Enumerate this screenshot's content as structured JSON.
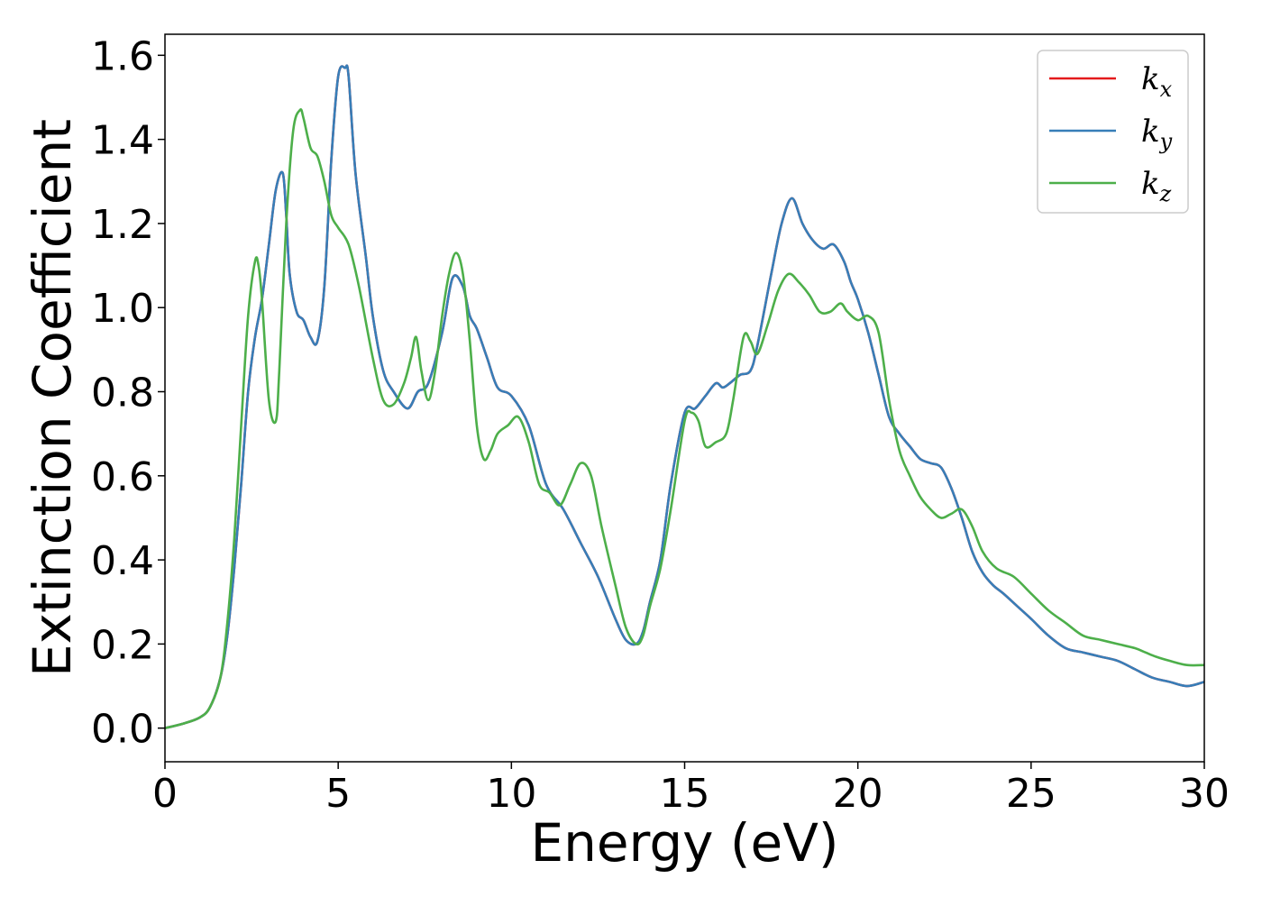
{
  "chart_data": {
    "type": "line",
    "xlabel": "Energy (eV)",
    "ylabel": "Extinction Coefficient",
    "xlim": [
      0,
      30
    ],
    "ylim": [
      -0.08,
      1.65
    ],
    "xticks": [
      0,
      5,
      10,
      15,
      20,
      25,
      30
    ],
    "xtick_labels": [
      "0",
      "5",
      "10",
      "15",
      "20",
      "25",
      "30"
    ],
    "yticks": [
      0.0,
      0.2,
      0.4,
      0.6,
      0.8,
      1.0,
      1.2,
      1.4,
      1.6
    ],
    "ytick_labels": [
      "0.0",
      "0.2",
      "0.4",
      "0.6",
      "0.8",
      "1.0",
      "1.2",
      "1.4",
      "1.6"
    ],
    "grid": false,
    "legend_position": "top-right",
    "series": [
      {
        "name": "k",
        "subscript": "x",
        "color": "#e41a1c",
        "x": [
          0,
          0.5,
          1.0,
          1.3,
          1.6,
          1.8,
          2.0,
          2.2,
          2.4,
          2.6,
          2.8,
          3.0,
          3.2,
          3.4,
          3.5,
          3.6,
          3.8,
          4.0,
          4.2,
          4.4,
          4.6,
          4.8,
          5.0,
          5.2,
          5.3,
          5.5,
          5.8,
          6.0,
          6.3,
          6.6,
          7.0,
          7.3,
          7.6,
          8.0,
          8.3,
          8.6,
          8.8,
          9.0,
          9.3,
          9.6,
          10.0,
          10.5,
          11.0,
          11.5,
          12.0,
          12.5,
          13.0,
          13.3,
          13.6,
          13.8,
          14.0,
          14.3,
          14.6,
          15.0,
          15.3,
          15.6,
          15.9,
          16.1,
          16.3,
          16.6,
          16.9,
          17.1,
          17.5,
          17.8,
          18.1,
          18.4,
          18.7,
          19.0,
          19.3,
          19.6,
          19.8,
          20.0,
          20.3,
          20.6,
          20.9,
          21.2,
          21.5,
          21.8,
          22.1,
          22.4,
          22.7,
          23.0,
          23.3,
          23.6,
          23.9,
          24.2,
          24.6,
          25.0,
          25.5,
          26.0,
          26.5,
          27.0,
          27.5,
          28.0,
          28.5,
          29.0,
          29.5,
          30.0
        ],
        "values": [
          0.0,
          0.01,
          0.025,
          0.05,
          0.12,
          0.22,
          0.38,
          0.58,
          0.8,
          0.93,
          1.02,
          1.15,
          1.28,
          1.32,
          1.22,
          1.08,
          0.99,
          0.97,
          0.93,
          0.92,
          1.05,
          1.35,
          1.55,
          1.57,
          1.55,
          1.32,
          1.12,
          0.98,
          0.85,
          0.8,
          0.76,
          0.8,
          0.82,
          0.94,
          1.07,
          1.05,
          0.98,
          0.95,
          0.88,
          0.81,
          0.79,
          0.72,
          0.58,
          0.52,
          0.44,
          0.36,
          0.26,
          0.21,
          0.2,
          0.23,
          0.3,
          0.4,
          0.58,
          0.75,
          0.76,
          0.79,
          0.82,
          0.81,
          0.82,
          0.84,
          0.85,
          0.91,
          1.08,
          1.2,
          1.26,
          1.2,
          1.16,
          1.14,
          1.15,
          1.11,
          1.06,
          1.02,
          0.94,
          0.84,
          0.74,
          0.7,
          0.67,
          0.64,
          0.63,
          0.62,
          0.57,
          0.5,
          0.42,
          0.37,
          0.34,
          0.32,
          0.29,
          0.26,
          0.22,
          0.19,
          0.18,
          0.17,
          0.16,
          0.14,
          0.12,
          0.11,
          0.1,
          0.11
        ]
      },
      {
        "name": "k",
        "subscript": "y",
        "color": "#377eb8",
        "x": [
          0,
          0.5,
          1.0,
          1.3,
          1.6,
          1.8,
          2.0,
          2.2,
          2.4,
          2.6,
          2.8,
          3.0,
          3.2,
          3.4,
          3.5,
          3.6,
          3.8,
          4.0,
          4.2,
          4.4,
          4.6,
          4.8,
          5.0,
          5.2,
          5.3,
          5.5,
          5.8,
          6.0,
          6.3,
          6.6,
          7.0,
          7.3,
          7.6,
          8.0,
          8.3,
          8.6,
          8.8,
          9.0,
          9.3,
          9.6,
          10.0,
          10.5,
          11.0,
          11.5,
          12.0,
          12.5,
          13.0,
          13.3,
          13.6,
          13.8,
          14.0,
          14.3,
          14.6,
          15.0,
          15.3,
          15.6,
          15.9,
          16.1,
          16.3,
          16.6,
          16.9,
          17.1,
          17.5,
          17.8,
          18.1,
          18.4,
          18.7,
          19.0,
          19.3,
          19.6,
          19.8,
          20.0,
          20.3,
          20.6,
          20.9,
          21.2,
          21.5,
          21.8,
          22.1,
          22.4,
          22.7,
          23.0,
          23.3,
          23.6,
          23.9,
          24.2,
          24.6,
          25.0,
          25.5,
          26.0,
          26.5,
          27.0,
          27.5,
          28.0,
          28.5,
          29.0,
          29.5,
          30.0
        ],
        "values": [
          0.0,
          0.01,
          0.025,
          0.05,
          0.12,
          0.22,
          0.38,
          0.58,
          0.8,
          0.93,
          1.02,
          1.15,
          1.28,
          1.32,
          1.22,
          1.08,
          0.99,
          0.97,
          0.93,
          0.92,
          1.05,
          1.35,
          1.55,
          1.57,
          1.55,
          1.32,
          1.12,
          0.98,
          0.85,
          0.8,
          0.76,
          0.8,
          0.82,
          0.94,
          1.07,
          1.05,
          0.98,
          0.95,
          0.88,
          0.81,
          0.79,
          0.72,
          0.58,
          0.52,
          0.44,
          0.36,
          0.26,
          0.21,
          0.2,
          0.23,
          0.3,
          0.4,
          0.58,
          0.75,
          0.76,
          0.79,
          0.82,
          0.81,
          0.82,
          0.84,
          0.85,
          0.91,
          1.08,
          1.2,
          1.26,
          1.2,
          1.16,
          1.14,
          1.15,
          1.11,
          1.06,
          1.02,
          0.94,
          0.84,
          0.74,
          0.7,
          0.67,
          0.64,
          0.63,
          0.62,
          0.57,
          0.5,
          0.42,
          0.37,
          0.34,
          0.32,
          0.29,
          0.26,
          0.22,
          0.19,
          0.18,
          0.17,
          0.16,
          0.14,
          0.12,
          0.11,
          0.1,
          0.11
        ]
      },
      {
        "name": "k",
        "subscript": "z",
        "color": "#4daf4a",
        "x": [
          0,
          0.5,
          1.0,
          1.3,
          1.6,
          1.8,
          2.0,
          2.2,
          2.4,
          2.6,
          2.7,
          2.8,
          3.0,
          3.2,
          3.3,
          3.5,
          3.7,
          3.9,
          4.0,
          4.2,
          4.4,
          4.6,
          4.8,
          5.0,
          5.3,
          5.6,
          6.0,
          6.3,
          6.6,
          6.9,
          7.1,
          7.25,
          7.4,
          7.6,
          7.8,
          8.0,
          8.2,
          8.4,
          8.6,
          8.8,
          9.0,
          9.2,
          9.4,
          9.6,
          9.9,
          10.2,
          10.5,
          10.8,
          11.1,
          11.4,
          11.7,
          12.0,
          12.3,
          12.6,
          13.0,
          13.3,
          13.6,
          13.8,
          14.0,
          14.3,
          14.6,
          15.0,
          15.2,
          15.4,
          15.6,
          15.9,
          16.2,
          16.4,
          16.7,
          16.9,
          17.1,
          17.4,
          17.7,
          18.0,
          18.3,
          18.6,
          18.9,
          19.2,
          19.5,
          19.7,
          20.0,
          20.3,
          20.6,
          20.9,
          21.2,
          21.5,
          21.8,
          22.1,
          22.4,
          22.7,
          23.0,
          23.3,
          23.6,
          24.0,
          24.5,
          25.0,
          25.5,
          26.0,
          26.5,
          27.0,
          27.5,
          28.0,
          28.3,
          28.6,
          29.0,
          29.5,
          30.0
        ],
        "values": [
          0.0,
          0.01,
          0.025,
          0.05,
          0.12,
          0.25,
          0.45,
          0.72,
          0.98,
          1.11,
          1.1,
          1.02,
          0.78,
          0.73,
          0.85,
          1.2,
          1.42,
          1.47,
          1.45,
          1.38,
          1.36,
          1.3,
          1.22,
          1.19,
          1.15,
          1.05,
          0.88,
          0.78,
          0.77,
          0.82,
          0.88,
          0.93,
          0.85,
          0.78,
          0.85,
          0.98,
          1.08,
          1.13,
          1.08,
          0.92,
          0.72,
          0.64,
          0.66,
          0.7,
          0.72,
          0.74,
          0.68,
          0.58,
          0.56,
          0.53,
          0.58,
          0.63,
          0.6,
          0.48,
          0.34,
          0.24,
          0.2,
          0.22,
          0.29,
          0.38,
          0.52,
          0.73,
          0.75,
          0.73,
          0.67,
          0.68,
          0.7,
          0.78,
          0.93,
          0.92,
          0.89,
          0.96,
          1.04,
          1.08,
          1.06,
          1.03,
          0.99,
          0.99,
          1.01,
          0.99,
          0.97,
          0.98,
          0.94,
          0.78,
          0.66,
          0.6,
          0.55,
          0.52,
          0.5,
          0.51,
          0.52,
          0.48,
          0.42,
          0.38,
          0.36,
          0.32,
          0.28,
          0.25,
          0.22,
          0.21,
          0.2,
          0.19,
          0.18,
          0.17,
          0.16,
          0.15,
          0.15
        ]
      }
    ]
  }
}
